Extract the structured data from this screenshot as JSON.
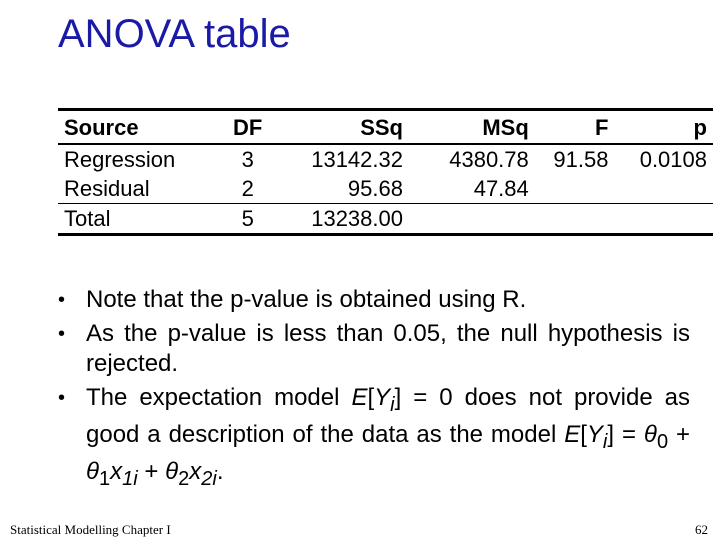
{
  "title": "ANOVA table",
  "table": {
    "headers": [
      "Source",
      "DF",
      "SSq",
      "MSq",
      "F",
      "p"
    ],
    "rows": [
      [
        "Regression",
        "3",
        "13142.32",
        "4380.78",
        "91.58",
        "0.0108"
      ],
      [
        "Residual",
        "2",
        "95.68",
        "47.84",
        "",
        ""
      ],
      [
        "Total",
        "5",
        "13238.00",
        "",
        "",
        ""
      ]
    ]
  },
  "bullets": {
    "b1": "Note that the p-value is obtained using R.",
    "b2": "As the p-value is less than 0.05, the null hypothesis is rejected.",
    "b3": {
      "pre": "The expectation model ",
      "e": "E",
      "bracket_open": "[",
      "y": "Y",
      "i": "i",
      "bracket_close": "]",
      "eq": " = 0",
      "mid": " does not provide as good a description of the data as the model ",
      "theta": "θ",
      "sub0": "0",
      "plus": " + ",
      "sub1": "1",
      "x": "x",
      "sub1i": "1i",
      "sub2": "2",
      "sub2i": "2i",
      "end": "."
    }
  },
  "footer": {
    "left": "Statistical Modelling   Chapter I",
    "page": "62"
  }
}
